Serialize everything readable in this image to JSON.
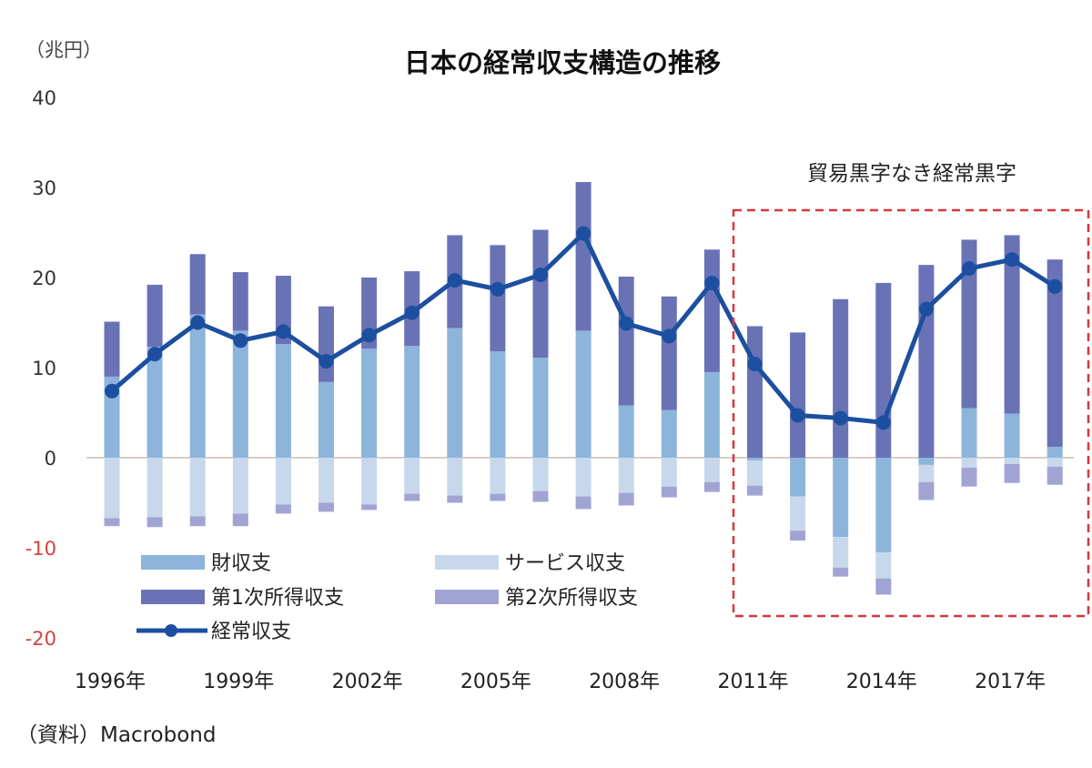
{
  "chart_data": {
    "type": "bar",
    "title": "日本の経常収支構造の推移",
    "ylabel": "（兆円）",
    "ylim": [
      -20,
      40
    ],
    "yticks": [
      40,
      30,
      20,
      10,
      0,
      -10,
      -20
    ],
    "xtick_labels": [
      "1996年",
      "1999年",
      "2002年",
      "2005年",
      "2008年",
      "2011年",
      "2014年",
      "2017年"
    ],
    "categories": [
      1996,
      1997,
      1998,
      1999,
      2000,
      2001,
      2002,
      2003,
      2004,
      2005,
      2006,
      2007,
      2008,
      2009,
      2010,
      2011,
      2012,
      2013,
      2014,
      2015,
      2016,
      2017,
      2018
    ],
    "stacked": true,
    "grid": false,
    "legend_position": "bottom-left",
    "series": [
      {
        "name": "財収支",
        "type": "bar",
        "color": "#8db4da",
        "values": [
          9.0,
          12.3,
          15.9,
          14.1,
          12.6,
          8.4,
          12.1,
          12.4,
          14.4,
          11.8,
          11.1,
          14.1,
          5.8,
          5.3,
          9.5,
          -0.3,
          -4.3,
          -8.8,
          -10.5,
          -0.8,
          5.5,
          4.9,
          1.2
        ]
      },
      {
        "name": "サービス収支",
        "type": "bar",
        "color": "#c8d8ec",
        "values": [
          -6.7,
          -6.6,
          -6.5,
          -6.2,
          -5.2,
          -5.0,
          -5.2,
          -4.0,
          -4.2,
          -4.0,
          -3.7,
          -4.3,
          -3.9,
          -3.2,
          -2.7,
          -2.8,
          -3.8,
          -3.4,
          -2.9,
          -1.9,
          -1.1,
          -0.7,
          -1.0
        ]
      },
      {
        "name": "第1次所得収支",
        "type": "bar",
        "color": "#6a72b6",
        "values": [
          6.1,
          6.9,
          6.7,
          6.5,
          7.6,
          8.4,
          7.9,
          8.3,
          10.3,
          11.8,
          14.2,
          16.5,
          14.3,
          12.6,
          13.6,
          14.6,
          13.9,
          17.6,
          19.4,
          21.4,
          18.7,
          19.8,
          20.8
        ]
      },
      {
        "name": "第2次所得収支",
        "type": "bar",
        "color": "#a1a4d3",
        "values": [
          -0.9,
          -1.1,
          -1.1,
          -1.4,
          -1.0,
          -1.0,
          -0.6,
          -0.8,
          -0.8,
          -0.8,
          -1.2,
          -1.4,
          -1.4,
          -1.2,
          -1.1,
          -1.1,
          -1.1,
          -1.0,
          -1.8,
          -2.0,
          -2.1,
          -2.1,
          -2.0
        ]
      },
      {
        "name": "経常収支",
        "type": "line",
        "color": "#1c4fa0",
        "values": [
          7.4,
          11.5,
          15.0,
          13.0,
          14.0,
          10.7,
          13.6,
          16.1,
          19.7,
          18.7,
          20.3,
          24.9,
          14.9,
          13.5,
          19.4,
          10.4,
          4.7,
          4.4,
          3.9,
          16.5,
          21.0,
          22.0,
          19.0
        ]
      }
    ],
    "annotation": {
      "text": "貿易黒字なき経常黒字",
      "range": [
        2011,
        2018
      ],
      "color": "#d9363e"
    }
  },
  "source": "（資料）Macrobond"
}
